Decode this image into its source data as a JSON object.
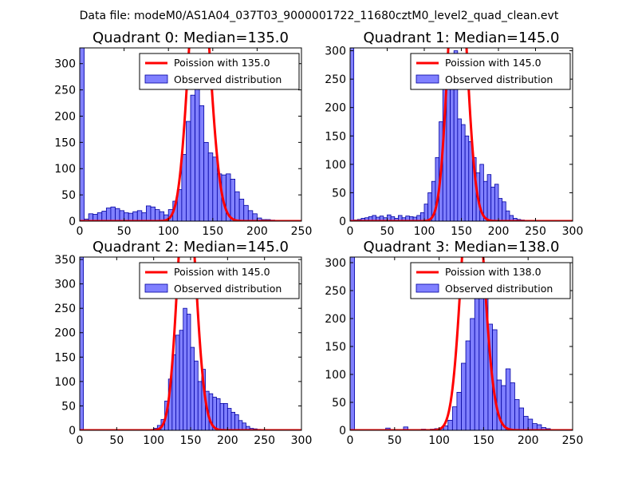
{
  "suptitle": "Data file: modeM0/AS1A04_037T03_9000001722_11680cztM0_level2_quad_clean.evt",
  "colors": {
    "bar_fill": "#8080ff",
    "bar_edge": "#0000a0",
    "poisson": "#ff0000",
    "axes": "#000000"
  },
  "chart_data": [
    {
      "type": "bar",
      "title": "Quadrant 0: Median=135.0",
      "xlabel": "",
      "ylabel": "",
      "xlim": [
        0,
        250
      ],
      "ylim": [
        0,
        330
      ],
      "xticks": [
        0,
        50,
        100,
        150,
        200,
        250
      ],
      "yticks": [
        0,
        50,
        100,
        150,
        200,
        250,
        300
      ],
      "bin_width": 5,
      "legend": {
        "location": "top-right",
        "entries": [
          "Poission with 135.0",
          "Observed distribution"
        ]
      },
      "series": [
        {
          "name": "Observed distribution",
          "kind": "histogram",
          "bins_start": [
            0,
            5,
            10,
            15,
            20,
            25,
            30,
            35,
            40,
            45,
            50,
            55,
            60,
            65,
            70,
            75,
            80,
            85,
            90,
            95,
            100,
            105,
            110,
            115,
            120,
            125,
            130,
            135,
            140,
            145,
            150,
            155,
            160,
            165,
            170,
            175,
            180,
            185,
            190,
            195,
            200,
            205,
            210,
            215,
            220,
            225,
            230,
            235,
            240
          ],
          "counts": [
            330,
            4,
            14,
            13,
            16,
            19,
            25,
            27,
            24,
            20,
            16,
            15,
            18,
            20,
            16,
            29,
            27,
            22,
            18,
            12,
            22,
            38,
            60,
            127,
            190,
            240,
            262,
            220,
            150,
            130,
            122,
            90,
            88,
            90,
            80,
            56,
            42,
            30,
            20,
            14,
            6,
            3,
            3,
            2,
            1,
            1,
            0,
            0,
            0
          ]
        },
        {
          "name": "Poission with 135.0",
          "kind": "line",
          "mu": 135.0,
          "total": 3100
        }
      ]
    },
    {
      "type": "bar",
      "title": "Quadrant 1: Median=145.0",
      "xlabel": "",
      "ylabel": "",
      "xlim": [
        0,
        300
      ],
      "ylim": [
        0,
        305
      ],
      "xticks": [
        0,
        50,
        100,
        150,
        200,
        250,
        300
      ],
      "yticks": [
        0,
        50,
        100,
        150,
        200,
        250,
        300
      ],
      "bin_width": 5,
      "legend": {
        "location": "top-right",
        "entries": [
          "Poission with 145.0",
          "Observed distribution"
        ]
      },
      "series": [
        {
          "name": "Observed distribution",
          "kind": "histogram",
          "bins_start": [
            0,
            5,
            10,
            15,
            20,
            25,
            30,
            35,
            40,
            45,
            50,
            55,
            60,
            65,
            70,
            75,
            80,
            85,
            90,
            95,
            100,
            105,
            110,
            115,
            120,
            125,
            130,
            135,
            140,
            145,
            150,
            155,
            160,
            165,
            170,
            175,
            180,
            185,
            190,
            195,
            200,
            205,
            210,
            215,
            220,
            225,
            230,
            235,
            240,
            245
          ],
          "counts": [
            305,
            2,
            3,
            5,
            6,
            8,
            10,
            7,
            9,
            6,
            11,
            8,
            5,
            10,
            6,
            9,
            8,
            7,
            10,
            15,
            30,
            50,
            70,
            112,
            175,
            280,
            290,
            240,
            300,
            180,
            170,
            150,
            140,
            112,
            85,
            100,
            70,
            82,
            60,
            65,
            40,
            34,
            18,
            10,
            5,
            3,
            2,
            0,
            0,
            0
          ]
        },
        {
          "name": "Poission with 145.0",
          "kind": "line",
          "mu": 145.0,
          "total": 3100
        }
      ]
    },
    {
      "type": "bar",
      "title": "Quadrant 2: Median=145.0",
      "xlabel": "",
      "ylabel": "",
      "xlim": [
        0,
        300
      ],
      "ylim": [
        0,
        355
      ],
      "xticks": [
        0,
        50,
        100,
        150,
        200,
        250,
        300
      ],
      "yticks": [
        0,
        50,
        100,
        150,
        200,
        250,
        300,
        350
      ],
      "bin_width": 5,
      "legend": {
        "location": "top-right",
        "entries": [
          "Poission with 145.0",
          "Observed distribution"
        ]
      },
      "series": [
        {
          "name": "Observed distribution",
          "kind": "histogram",
          "bins_start": [
            0,
            5,
            10,
            15,
            20,
            25,
            30,
            35,
            40,
            45,
            50,
            55,
            60,
            65,
            70,
            75,
            80,
            85,
            90,
            95,
            100,
            105,
            110,
            115,
            120,
            125,
            130,
            135,
            140,
            145,
            150,
            155,
            160,
            165,
            170,
            175,
            180,
            185,
            190,
            195,
            200,
            205,
            210,
            215,
            220,
            225,
            230,
            235,
            240,
            245,
            250
          ],
          "counts": [
            355,
            0,
            0,
            0,
            0,
            0,
            0,
            0,
            0,
            0,
            0,
            0,
            0,
            0,
            0,
            0,
            0,
            0,
            0,
            0,
            4,
            10,
            22,
            60,
            105,
            155,
            195,
            205,
            250,
            238,
            170,
            142,
            100,
            125,
            80,
            75,
            68,
            65,
            55,
            55,
            45,
            37,
            32,
            20,
            15,
            8,
            4,
            3,
            2,
            1,
            0
          ]
        },
        {
          "name": "Poission with 145.0",
          "kind": "line",
          "mu": 145.0,
          "total": 3200
        }
      ]
    },
    {
      "type": "bar",
      "title": "Quadrant 3: Median=138.0",
      "xlabel": "",
      "ylabel": "",
      "xlim": [
        0,
        250
      ],
      "ylim": [
        0,
        310
      ],
      "xticks": [
        0,
        50,
        100,
        150,
        200,
        250
      ],
      "yticks": [
        0,
        50,
        100,
        150,
        200,
        250,
        300
      ],
      "bin_width": 5,
      "legend": {
        "location": "top-right",
        "entries": [
          "Poission with 138.0",
          "Observed distribution"
        ]
      },
      "series": [
        {
          "name": "Observed distribution",
          "kind": "histogram",
          "bins_start": [
            0,
            5,
            10,
            15,
            20,
            25,
            30,
            35,
            40,
            45,
            50,
            55,
            60,
            65,
            70,
            75,
            80,
            85,
            90,
            95,
            100,
            105,
            110,
            115,
            120,
            125,
            130,
            135,
            140,
            145,
            150,
            155,
            160,
            165,
            170,
            175,
            180,
            185,
            190,
            195,
            200,
            205,
            210,
            215,
            220,
            225,
            230,
            235
          ],
          "counts": [
            310,
            0,
            0,
            0,
            0,
            0,
            0,
            0,
            4,
            0,
            0,
            0,
            6,
            0,
            0,
            0,
            2,
            0,
            2,
            3,
            4,
            8,
            18,
            42,
            68,
            120,
            160,
            200,
            290,
            255,
            240,
            190,
            180,
            90,
            80,
            110,
            85,
            55,
            40,
            25,
            20,
            12,
            10,
            5,
            3,
            1,
            0,
            0
          ]
        },
        {
          "name": "Poission with 138.0",
          "kind": "line",
          "mu": 138.0,
          "total": 3050
        }
      ]
    }
  ]
}
